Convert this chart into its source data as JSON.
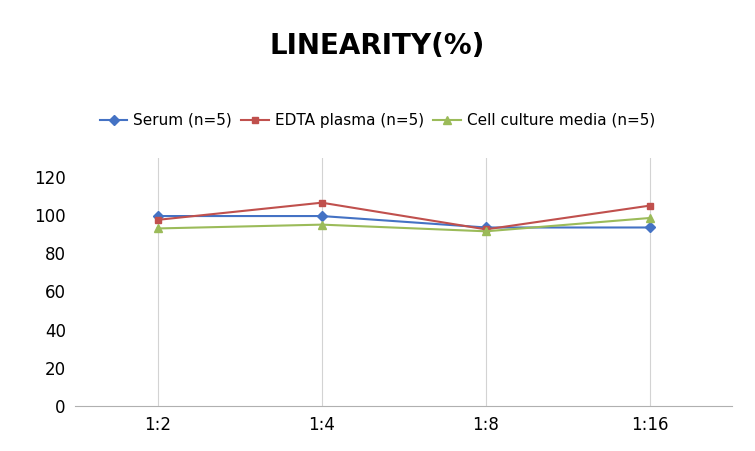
{
  "title": "LINEARITY(%)",
  "title_fontsize": 20,
  "title_fontweight": "bold",
  "x_labels": [
    "1:2",
    "1:4",
    "1:8",
    "1:16"
  ],
  "x_positions": [
    0,
    1,
    2,
    3
  ],
  "series": [
    {
      "label": "Serum (n=5)",
      "values": [
        99.5,
        99.5,
        93.5,
        93.5
      ],
      "color": "#4472C4",
      "marker": "D",
      "markersize": 5
    },
    {
      "label": "EDTA plasma (n=5)",
      "values": [
        97.5,
        106.5,
        92.5,
        105.0
      ],
      "color": "#C0504D",
      "marker": "s",
      "markersize": 5
    },
    {
      "label": "Cell culture media (n=5)",
      "values": [
        93.0,
        95.0,
        91.5,
        98.5
      ],
      "color": "#9BBB59",
      "marker": "^",
      "markersize": 6
    }
  ],
  "ylim": [
    0,
    130
  ],
  "yticks": [
    0,
    20,
    40,
    60,
    80,
    100,
    120
  ],
  "background_color": "#ffffff",
  "grid_color": "#d3d3d3",
  "legend_fontsize": 11,
  "axis_tick_fontsize": 12
}
